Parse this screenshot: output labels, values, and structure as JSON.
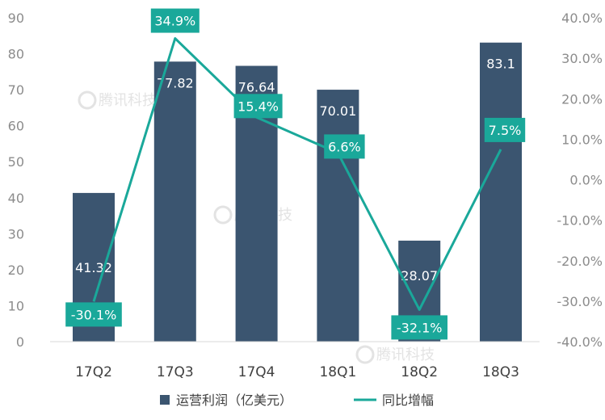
{
  "chart_data": {
    "type": "bar",
    "categories": [
      "17Q2",
      "17Q3",
      "17Q4",
      "18Q1",
      "18Q2",
      "18Q3"
    ],
    "series": [
      {
        "name": "运营利润（亿美元）",
        "type": "bar",
        "axis": "left",
        "values": [
          41.32,
          77.82,
          76.64,
          70.01,
          28.07,
          83.1
        ],
        "labels": [
          "41.32",
          "77.82",
          "76.64",
          "70.01",
          "28.07",
          "83.1"
        ],
        "color": "#3b5570"
      },
      {
        "name": "同比增幅",
        "type": "line",
        "axis": "right",
        "values": [
          -30.1,
          34.9,
          15.4,
          6.6,
          -32.1,
          7.5
        ],
        "labels": [
          "-30.1%",
          "34.9%",
          "15.4%",
          "6.6%",
          "-32.1%",
          "7.5%"
        ],
        "color": "#1aa89a"
      }
    ],
    "ylim": [
      0,
      90
    ],
    "yticks": [
      "0",
      "10",
      "20",
      "30",
      "40",
      "50",
      "60",
      "70",
      "80",
      "90"
    ],
    "y2lim": [
      -40,
      40
    ],
    "y2ticks": [
      "-40.0%",
      "-30.0%",
      "-20.0%",
      "-10.0%",
      "0.0%",
      "10.0%",
      "20.0%",
      "30.0%",
      "40.0%"
    ],
    "grid": false,
    "legend": "bottom",
    "watermark": "腾讯科技"
  }
}
